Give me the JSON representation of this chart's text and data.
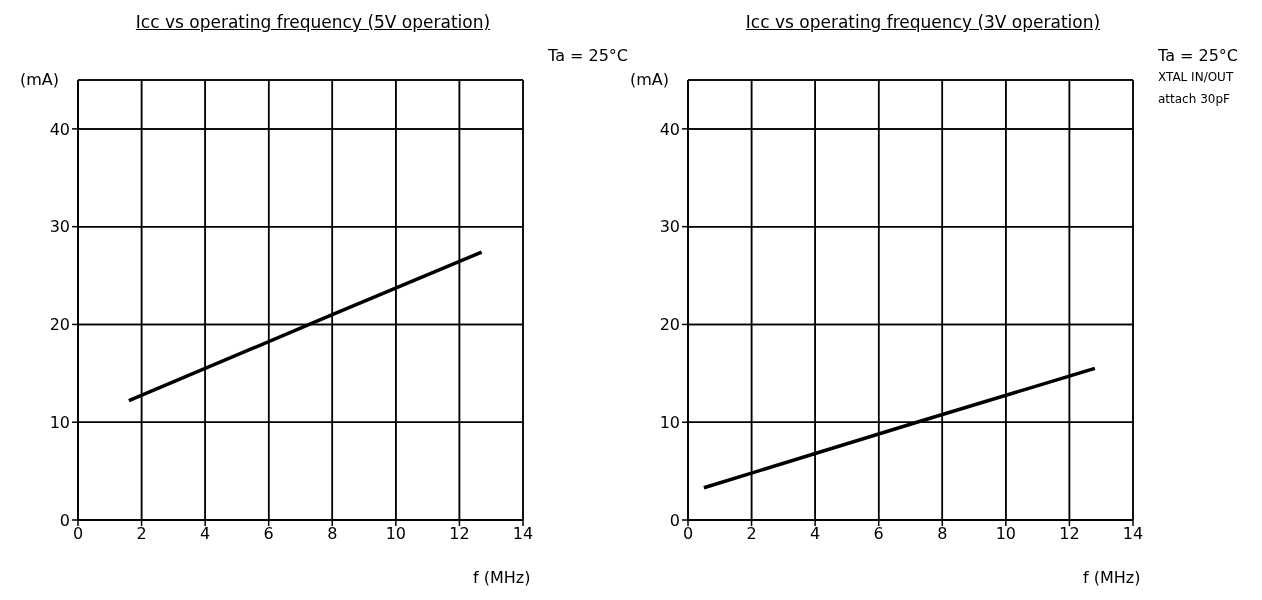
{
  "chart_data": [
    {
      "type": "line",
      "title": "Icc vs operating frequency (5V operation)",
      "xlabel": "f (MHz)",
      "ylabel": "(mA)",
      "annotations": [
        "Ta = 25°C"
      ],
      "x": [
        1.6,
        8,
        12.7
      ],
      "series": [
        {
          "color": "#000000",
          "values": [
            12.2,
            21,
            27.4
          ]
        }
      ],
      "xlim": [
        0,
        14
      ],
      "xticks": [
        0,
        2,
        4,
        6,
        8,
        10,
        12,
        14
      ],
      "ylim": [
        0,
        45
      ],
      "yticks": [
        0,
        10,
        20,
        30,
        40
      ],
      "grid": true,
      "legend": false
    },
    {
      "type": "line",
      "title": "Icc vs operating frequency (3V operation)",
      "xlabel": "f (MHz)",
      "ylabel": "(mA)",
      "annotations": [
        "Ta = 25°C",
        "XTAL IN/OUT",
        "attach 30pF"
      ],
      "x": [
        0.5,
        7.2,
        12.8
      ],
      "series": [
        {
          "color": "#000000",
          "values": [
            3.3,
            10,
            15.5
          ]
        }
      ],
      "xlim": [
        0,
        14
      ],
      "xticks": [
        0,
        2,
        4,
        6,
        8,
        10,
        12,
        14
      ],
      "ylim": [
        0,
        45
      ],
      "yticks": [
        0,
        10,
        20,
        30,
        40
      ],
      "grid": true,
      "legend": false
    }
  ]
}
